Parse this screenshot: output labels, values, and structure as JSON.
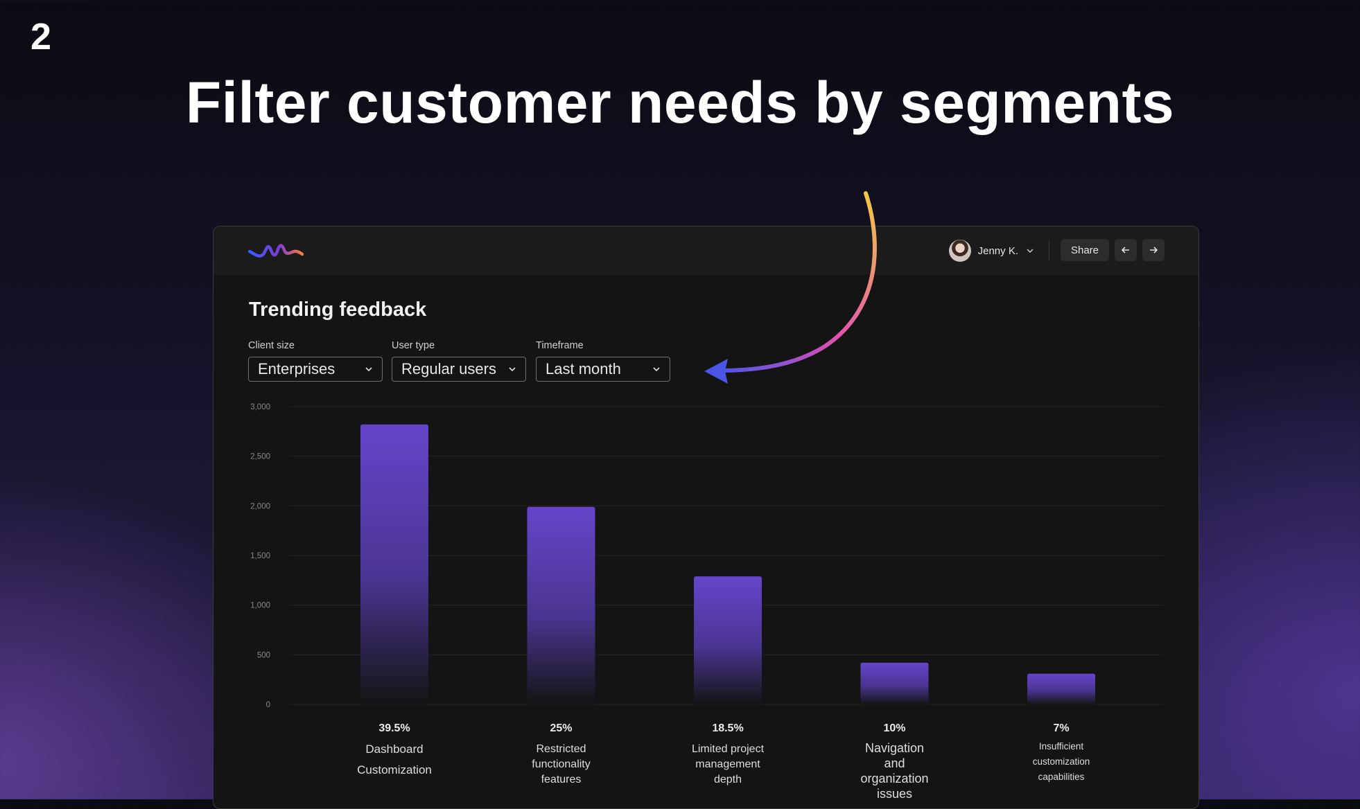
{
  "step_number": "2",
  "headline": "Filter customer needs by segments",
  "app": {
    "user": {
      "name": "Jenny K."
    },
    "share_label": "Share",
    "page_title": "Trending feedback",
    "filters": [
      {
        "label": "Client size",
        "value": "Enterprises"
      },
      {
        "label": "User type",
        "value": "Regular users"
      },
      {
        "label": "Timeframe",
        "value": "Last month"
      }
    ]
  },
  "colors": {
    "bar_top": "#6545c9",
    "bar_bottom": "#141414",
    "arrow_start": "#f3c64a",
    "arrow_mid": "#e34fb0",
    "arrow_end": "#4a55e8",
    "accent": "#6545c9"
  },
  "chart_data": {
    "type": "bar",
    "ylim": [
      0,
      3000
    ],
    "yticks": [
      "3,000",
      "2,500",
      "2,000",
      "1,500",
      "1,000",
      "500",
      "0"
    ],
    "ytick_values": [
      3000,
      2500,
      2000,
      1500,
      1000,
      500,
      0
    ],
    "grid": true,
    "categories": [
      {
        "label_lines": [
          "Dashboard",
          "Customization"
        ],
        "percent": "39.5%",
        "value": 2820,
        "style": "large-spaced"
      },
      {
        "label_lines": [
          "Restricted",
          "functionality",
          "features"
        ],
        "percent": "25%",
        "value": 1990,
        "style": "normal"
      },
      {
        "label_lines": [
          "Limited project",
          "management",
          "depth"
        ],
        "percent": "18.5%",
        "value": 1290,
        "style": "normal"
      },
      {
        "label_lines": [
          "Navigation",
          "and",
          "organization",
          "issues"
        ],
        "percent": "10%",
        "value": 420,
        "style": "large"
      },
      {
        "label_lines": [
          "Insufficient",
          "customization",
          "capabilities"
        ],
        "percent": "7%",
        "value": 310,
        "style": "small"
      }
    ]
  }
}
